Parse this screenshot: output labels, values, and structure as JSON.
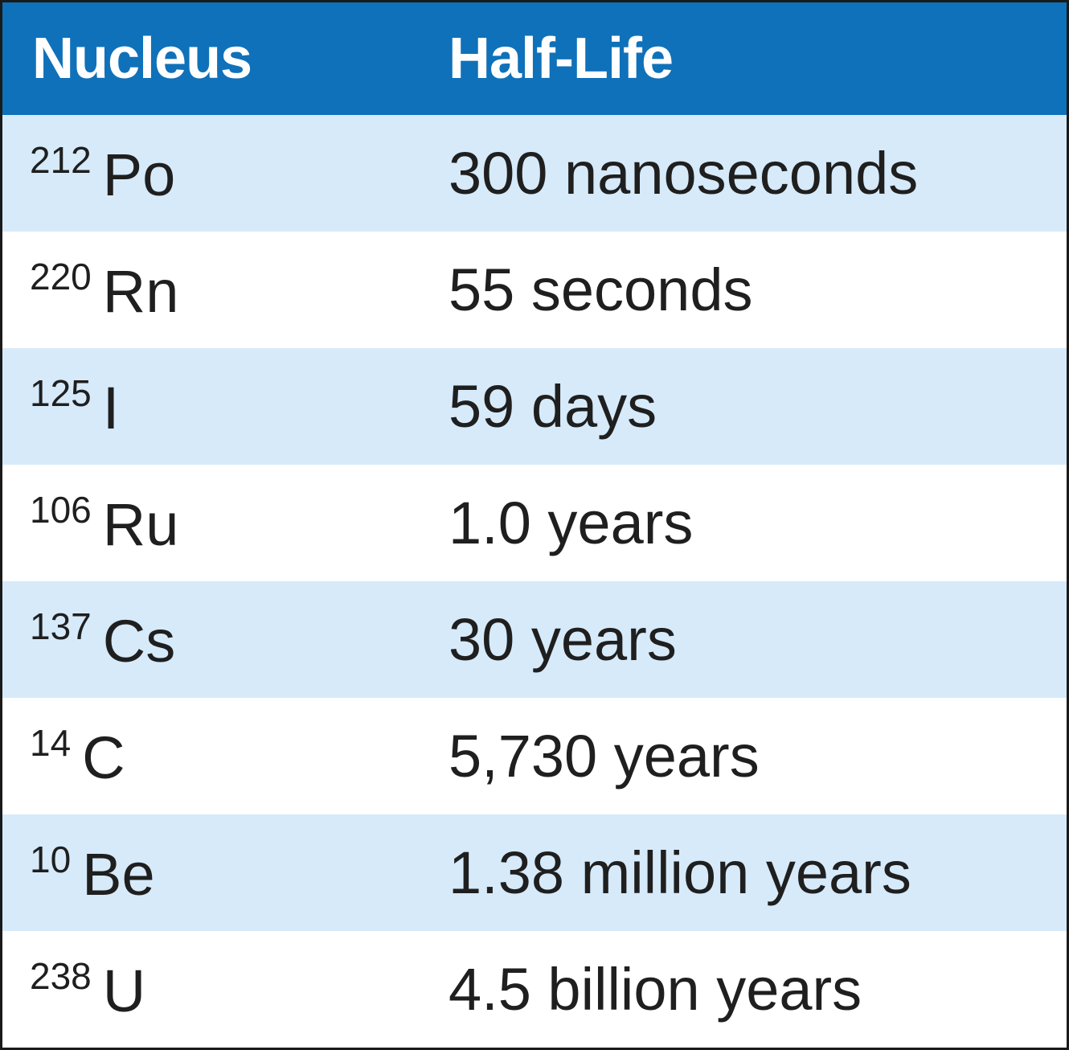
{
  "table": {
    "headers": {
      "nucleus": "Nucleus",
      "half_life": "Half-Life"
    },
    "rows": [
      {
        "mass": "212",
        "symbol": "Po",
        "half_life": "300 nanoseconds"
      },
      {
        "mass": "220",
        "symbol": "Rn",
        "half_life": "55 seconds"
      },
      {
        "mass": "125",
        "symbol": "I",
        "half_life": "59 days"
      },
      {
        "mass": "106",
        "symbol": "Ru",
        "half_life": "1.0 years"
      },
      {
        "mass": "137",
        "symbol": "Cs",
        "half_life": "30 years"
      },
      {
        "mass": "14",
        "symbol": "C",
        "half_life": "5,730 years"
      },
      {
        "mass": "10",
        "symbol": "Be",
        "half_life": "1.38 million years"
      },
      {
        "mass": "238",
        "symbol": "U",
        "half_life": "4.5 billion years"
      }
    ]
  },
  "colors": {
    "header_bg": "#0f71b9",
    "header_text": "#ffffff",
    "stripe": "#d6eafa",
    "row_white": "#ffffff",
    "text": "#1f1f1f"
  }
}
